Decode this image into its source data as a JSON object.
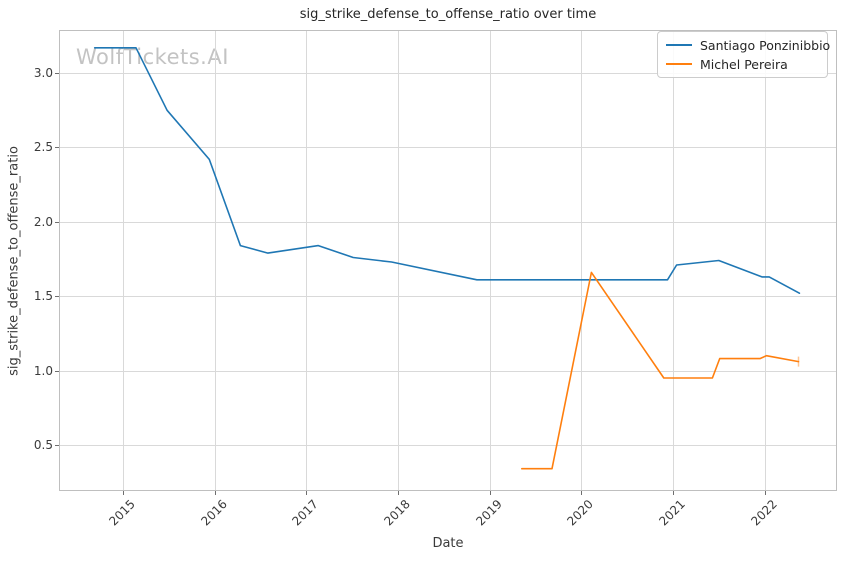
{
  "watermark": "WolfTickets.AI",
  "chart_data": {
    "type": "line",
    "title": "sig_strike_defense_to_offense_ratio over time",
    "xlabel": "Date",
    "ylabel": "sig_strike_defense_to_offense_ratio",
    "xlim": [
      2014.3,
      2022.79
    ],
    "ylim": [
      0.19,
      3.29
    ],
    "x_ticks": [
      2015,
      2016,
      2017,
      2018,
      2019,
      2020,
      2021,
      2022
    ],
    "y_ticks": [
      0.5,
      1.0,
      1.5,
      2.0,
      2.5,
      3.0
    ],
    "grid": true,
    "grid_color": "#d9d9d9",
    "spine_color": "#bfbfbf",
    "tick_mark_color": "#6e6e6e",
    "legend_position": "upper right",
    "series": [
      {
        "name": "Santiago Ponzinibbio",
        "color": "#1f77b4",
        "points": [
          [
            2014.69,
            3.17
          ],
          [
            2015.14,
            3.17
          ],
          [
            2015.48,
            2.75
          ],
          [
            2015.94,
            2.42
          ],
          [
            2016.28,
            1.84
          ],
          [
            2016.58,
            1.79
          ],
          [
            2017.13,
            1.84
          ],
          [
            2017.51,
            1.76
          ],
          [
            2017.93,
            1.73
          ],
          [
            2018.86,
            1.61
          ],
          [
            2020.94,
            1.61
          ],
          [
            2021.04,
            1.71
          ],
          [
            2021.5,
            1.74
          ],
          [
            2021.97,
            1.63
          ],
          [
            2022.05,
            1.63
          ],
          [
            2022.38,
            1.52
          ]
        ],
        "end_tick_marker": false
      },
      {
        "name": "Michel Pereira",
        "color": "#ff7f0e",
        "points": [
          [
            2019.35,
            0.34
          ],
          [
            2019.68,
            0.34
          ],
          [
            2020.11,
            1.66
          ],
          [
            2020.9,
            0.95
          ],
          [
            2021.43,
            0.95
          ],
          [
            2021.51,
            1.08
          ],
          [
            2021.95,
            1.08
          ],
          [
            2022.02,
            1.1
          ],
          [
            2022.37,
            1.06
          ]
        ],
        "end_tick_marker": true
      }
    ]
  }
}
